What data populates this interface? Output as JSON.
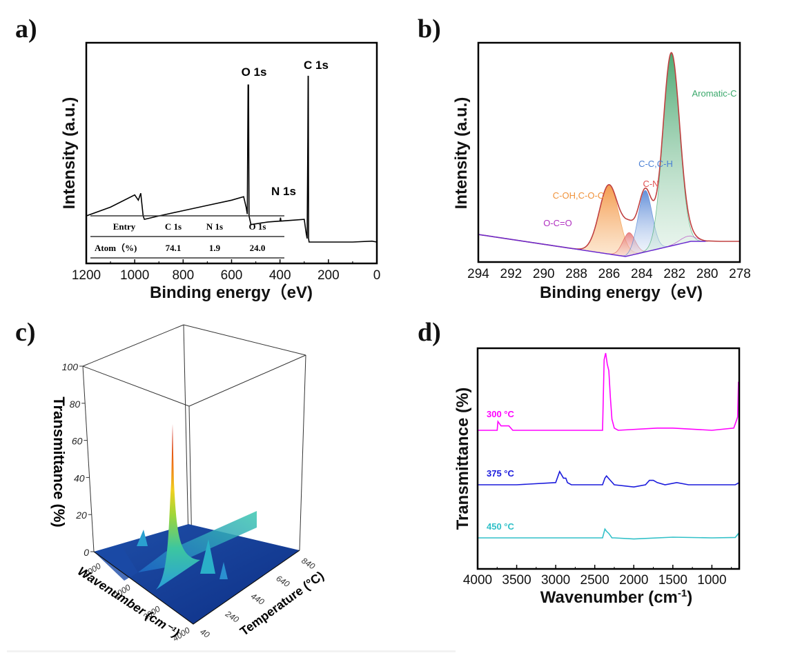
{
  "panels": {
    "a": {
      "letter": "a)"
    },
    "b": {
      "letter": "b)"
    },
    "c": {
      "letter": "c)"
    },
    "d": {
      "letter": "d)"
    }
  },
  "chart_data": [
    {
      "id": "a",
      "type": "line",
      "title": "",
      "xlabel": "Binding energy（eV)",
      "ylabel": "Intensity (a.u.)",
      "xlim": [
        1200,
        0
      ],
      "xticks": [
        "1200",
        "1000",
        "800",
        "600",
        "400",
        "200",
        "0"
      ],
      "grid": false,
      "annotations": [
        "O 1s",
        "C 1s",
        "N 1s"
      ],
      "series": [
        {
          "name": "survey",
          "color": "#000000",
          "x": [
            1200,
            1100,
            1000,
            985,
            975,
            965,
            960,
            900,
            800,
            700,
            600,
            550,
            540,
            535,
            532,
            530,
            528,
            520,
            450,
            400,
            398,
            396,
            300,
            292,
            288,
            285,
            284,
            283,
            282,
            280,
            270,
            200,
            100,
            20,
            0
          ],
          "y": [
            15,
            20,
            27,
            24,
            28,
            15,
            13,
            15,
            18,
            21,
            24,
            26,
            20,
            16,
            90,
            90,
            15,
            10,
            11.5,
            12,
            14,
            12,
            13,
            5,
            2,
            60,
            95,
            95,
            2,
            0,
            0,
            0,
            0,
            0.5,
            0
          ]
        }
      ],
      "inset_table": {
        "headers": [
          "Entry",
          "C 1s",
          "N 1s",
          "O 1s"
        ],
        "rows": [
          [
            "Atom（%)",
            "74.1",
            "1.9",
            "24.0"
          ]
        ]
      }
    },
    {
      "id": "b",
      "type": "area",
      "title": "",
      "xlabel": "Binding energy（eV)",
      "ylabel": "Intensity (a.u.)",
      "xlim": [
        294,
        278
      ],
      "xticks": [
        "294",
        "292",
        "290",
        "288",
        "286",
        "284",
        "282",
        "280",
        "278"
      ],
      "grid": false,
      "series": [
        {
          "name": "Aromatic-C",
          "color": "#3aa86b",
          "center": 282.2,
          "height": 100,
          "fwhm": 1.2
        },
        {
          "name": "C-C,C-H",
          "color": "#4a7fd4",
          "center": 283.8,
          "height": 32,
          "fwhm": 1.0
        },
        {
          "name": "C-N",
          "color": "#e05050",
          "center": 284.8,
          "height": 12,
          "fwhm": 0.9
        },
        {
          "name": "C-OH,C-O-C",
          "color": "#f0923a",
          "center": 286.0,
          "height": 36,
          "fwhm": 1.4
        },
        {
          "name": "O-C=O",
          "color": "#b030c0",
          "center": 281.2,
          "height": 3,
          "fwhm": 1.2
        }
      ]
    },
    {
      "id": "c",
      "type": "surface3d",
      "title": "",
      "xlabel": "Wavenumber (cm⁻¹)",
      "ylabel": "Temperature (°C)",
      "zlabel": "Transmittance (%)",
      "xticks": [
        "1000",
        "2000",
        "3000",
        "4000"
      ],
      "yticks": [
        "40",
        "240",
        "440",
        "640",
        "840"
      ],
      "zticks": [
        "0",
        "20",
        "40",
        "60",
        "80",
        "100"
      ],
      "zlim": [
        0,
        100
      ],
      "peaks": [
        {
          "wavenumber": 2350,
          "temperature": 300,
          "value": 92
        },
        {
          "wavenumber": 700,
          "temperature": 300,
          "value": 25
        },
        {
          "wavenumber": 2350,
          "temperature": 700,
          "value": 35
        },
        {
          "wavenumber": 2950,
          "temperature": 375,
          "value": 20
        }
      ]
    },
    {
      "id": "d",
      "type": "line",
      "title": "",
      "xlabel": "Wavenumber (cm",
      "xlabel_sup": "-1",
      "xlabel_end": ")",
      "ylabel": "Transmittance (%)",
      "xlim": [
        4000,
        650
      ],
      "xticks": [
        "4000",
        "3500",
        "3000",
        "2500",
        "2000",
        "1500",
        "1000"
      ],
      "grid": false,
      "series": [
        {
          "name": "300 °C",
          "color": "#ff00ff",
          "offset": 62,
          "x": [
            4000,
            3750,
            3740,
            3700,
            3650,
            3600,
            3550,
            3000,
            2400,
            2380,
            2360,
            2340,
            2320,
            2300,
            2280,
            2250,
            2200,
            1700,
            1500,
            1000,
            720,
            690,
            670,
            660,
            655,
            650
          ],
          "y": [
            0,
            0,
            4,
            2,
            2,
            2,
            0,
            0,
            0,
            32,
            35,
            30,
            27,
            15,
            5,
            1,
            0,
            1,
            1,
            0,
            1,
            4,
            6,
            22,
            14,
            3
          ]
        },
        {
          "name": "375 °C",
          "color": "#1a1adc",
          "offset": 30,
          "x": [
            4000,
            3500,
            3000,
            2950,
            2900,
            2870,
            2850,
            2800,
            2400,
            2370,
            2350,
            2300,
            2250,
            2000,
            1850,
            1800,
            1750,
            1700,
            1600,
            1450,
            1300,
            1000,
            700,
            650
          ],
          "y": [
            0,
            0,
            1,
            6,
            3,
            3,
            1,
            0,
            0,
            3,
            4,
            2,
            0,
            -1,
            0,
            2,
            2,
            1,
            0,
            1,
            0,
            0,
            0,
            1
          ]
        },
        {
          "name": "450 °C",
          "color": "#30c0c8",
          "offset": 0,
          "x": [
            4000,
            3000,
            2400,
            2370,
            2350,
            2320,
            2280,
            2250,
            2000,
            1500,
            1000,
            700,
            660,
            650
          ],
          "y": [
            0,
            0,
            0,
            4,
            3,
            2,
            0,
            0,
            -0.5,
            0.3,
            0,
            0.2,
            2,
            0
          ]
        }
      ]
    }
  ]
}
